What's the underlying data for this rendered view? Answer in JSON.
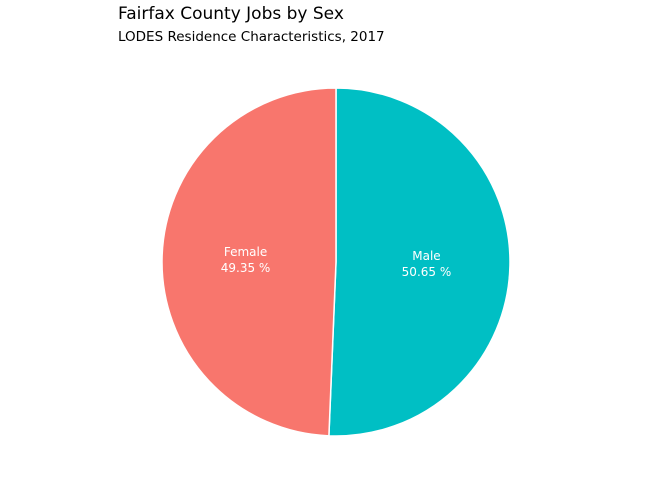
{
  "chart_data": {
    "type": "pie",
    "title": "Fairfax County Jobs by Sex",
    "subtitle": "LODES Residence Characteristics, 2017",
    "slices": [
      {
        "name": "Female",
        "value": 49.35,
        "label": "Female",
        "value_text": "49.35 %",
        "color": "#F8766D"
      },
      {
        "name": "Male",
        "value": 50.65,
        "label": "Male",
        "value_text": "50.65 %",
        "color": "#00BFC4"
      }
    ],
    "legend": "none"
  }
}
